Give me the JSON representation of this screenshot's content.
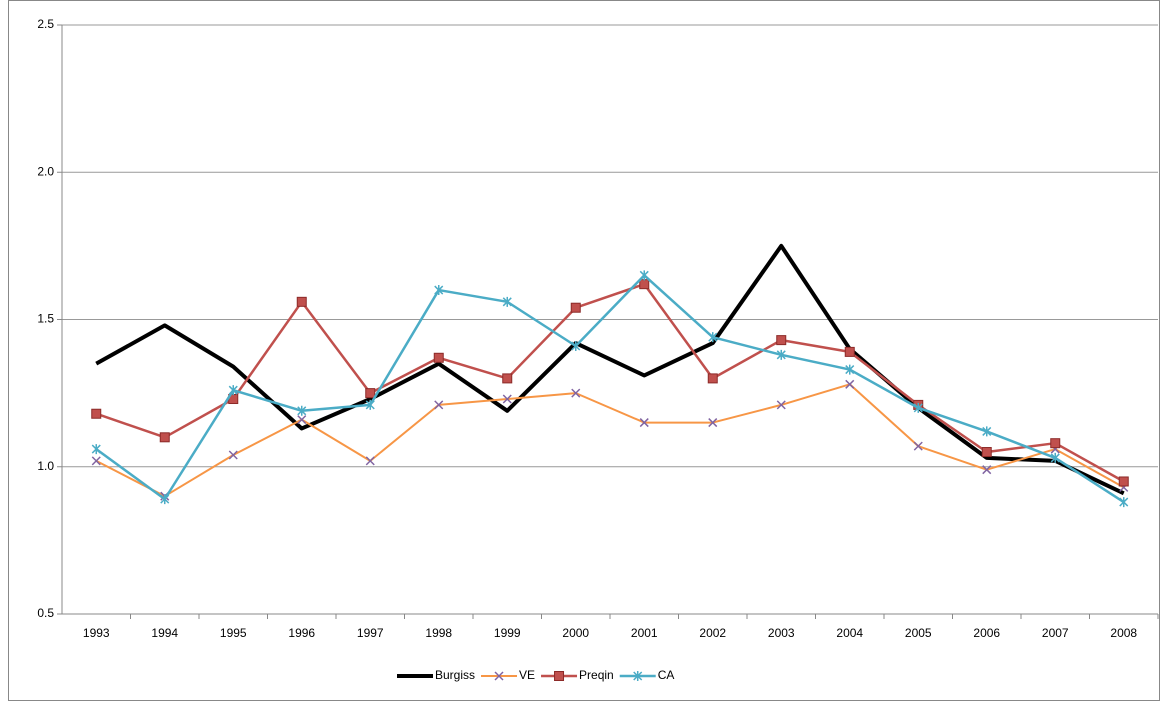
{
  "chart_data": {
    "type": "line",
    "categories": [
      "1993",
      "1994",
      "1995",
      "1996",
      "1997",
      "1998",
      "1999",
      "2000",
      "2001",
      "2002",
      "2003",
      "2004",
      "2005",
      "2006",
      "2007",
      "2008"
    ],
    "series": [
      {
        "name": "Burgiss",
        "color": "#000000",
        "width": 4,
        "marker": "none",
        "values": [
          1.35,
          1.48,
          1.34,
          1.13,
          1.23,
          1.35,
          1.19,
          1.42,
          1.31,
          1.42,
          1.75,
          1.4,
          1.2,
          1.03,
          1.02,
          0.91
        ]
      },
      {
        "name": "VE",
        "color": "#f79646",
        "marker_color": "#8064a2",
        "width": 2,
        "marker": "x",
        "values": [
          1.02,
          0.9,
          1.04,
          1.16,
          1.02,
          1.21,
          1.23,
          1.25,
          1.15,
          1.15,
          1.21,
          1.28,
          1.07,
          0.99,
          1.06,
          0.93
        ]
      },
      {
        "name": "Preqin",
        "color": "#c0504d",
        "width": 2.5,
        "marker": "square",
        "values": [
          1.18,
          1.1,
          1.23,
          1.56,
          1.25,
          1.37,
          1.3,
          1.54,
          1.62,
          1.3,
          1.43,
          1.39,
          1.21,
          1.05,
          1.08,
          0.95
        ]
      },
      {
        "name": "CA",
        "color": "#4bacc6",
        "width": 2.5,
        "marker": "star",
        "values": [
          1.06,
          0.89,
          1.26,
          1.19,
          1.21,
          1.6,
          1.56,
          1.41,
          1.65,
          1.44,
          1.38,
          1.33,
          1.2,
          1.12,
          1.03,
          0.88
        ]
      }
    ],
    "ylim": [
      0.5,
      2.5
    ],
    "yticks": [
      {
        "value": 0.5,
        "label": "0.5"
      },
      {
        "value": 1,
        "label": "1.0"
      },
      {
        "value": 1.5,
        "label": "1.5"
      },
      {
        "value": 2,
        "label": "2.0"
      },
      {
        "value": 2.5,
        "label": "2.5"
      }
    ],
    "grid": true,
    "legend": "bottom"
  }
}
